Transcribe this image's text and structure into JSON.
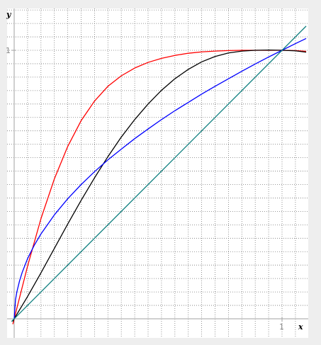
{
  "chart_data": {
    "type": "line",
    "xlabel": "x",
    "ylabel": "y",
    "xlim": [
      -0.01,
      1.09
    ],
    "ylim": [
      -0.045,
      1.165
    ],
    "x_ticks": [
      {
        "value": 1,
        "label": "1"
      }
    ],
    "y_ticks": [
      {
        "value": 1,
        "label": "1"
      }
    ],
    "grid": true,
    "grid_step": 0.05,
    "series": [
      {
        "color": "#ff0000",
        "x": [
          -0.005,
          0,
          0.05,
          0.1,
          0.15,
          0.2,
          0.25,
          0.3,
          0.35,
          0.4,
          0.45,
          0.5,
          0.55,
          0.6,
          0.65,
          0.7,
          0.75,
          0.8,
          0.85,
          0.9,
          0.95,
          1.0,
          1.05,
          1.09
        ],
        "y": [
          -0.02,
          0,
          0.196,
          0.373,
          0.521,
          0.642,
          0.738,
          0.811,
          0.866,
          0.905,
          0.934,
          0.955,
          0.97,
          0.981,
          0.989,
          0.994,
          0.997,
          0.999,
          1.0,
          1.0,
          1.0,
          1.0,
          0.999,
          0.996
        ]
      },
      {
        "color": "#000000",
        "x": [
          -0.005,
          0,
          0.05,
          0.1,
          0.15,
          0.2,
          0.25,
          0.3,
          0.35,
          0.4,
          0.45,
          0.5,
          0.55,
          0.6,
          0.65,
          0.7,
          0.75,
          0.8,
          0.85,
          0.9,
          0.95,
          1.0,
          1.05,
          1.09
        ],
        "y": [
          -0.01,
          0,
          0.083,
          0.171,
          0.262,
          0.353,
          0.441,
          0.525,
          0.604,
          0.677,
          0.742,
          0.8,
          0.851,
          0.894,
          0.929,
          0.957,
          0.977,
          0.99,
          0.997,
          1.0,
          1.001,
          1.0,
          0.998,
          0.993
        ]
      },
      {
        "color": "#0000ff",
        "x": [
          0,
          0.005,
          0.01,
          0.02,
          0.03,
          0.05,
          0.075,
          0.1,
          0.15,
          0.2,
          0.25,
          0.3,
          0.35,
          0.4,
          0.45,
          0.5,
          0.55,
          0.6,
          0.65,
          0.7,
          0.75,
          0.8,
          0.85,
          0.9,
          0.95,
          1.0,
          1.05,
          1.09
        ],
        "y": [
          0,
          0.071,
          0.1,
          0.141,
          0.173,
          0.224,
          0.274,
          0.316,
          0.387,
          0.447,
          0.5,
          0.548,
          0.592,
          0.632,
          0.671,
          0.707,
          0.742,
          0.775,
          0.806,
          0.837,
          0.866,
          0.894,
          0.922,
          0.949,
          0.975,
          1.0,
          1.025,
          1.044
        ]
      },
      {
        "color": "#0f7f7f",
        "x": [
          -0.01,
          1.09
        ],
        "y": [
          -0.01,
          1.09
        ]
      }
    ]
  }
}
